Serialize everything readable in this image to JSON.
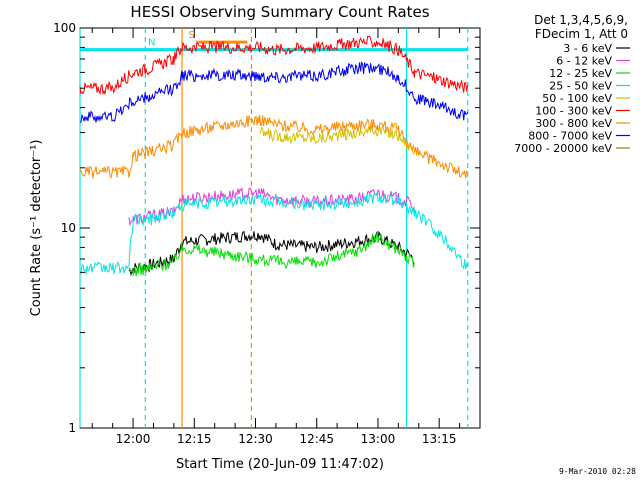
{
  "chart_data": {
    "type": "line",
    "title": "HESSI Observing Summary Count Rates",
    "xlabel": "Start Time (20-Jun-09 11:47:02)",
    "ylabel": "Count Rate (s⁻¹ detector⁻¹)",
    "y_scale": "log",
    "ylim": [
      1,
      100
    ],
    "xlim": [
      "11:47",
      "13:25"
    ],
    "x_tick_labels": [
      "12:00",
      "12:15",
      "12:30",
      "12:45",
      "13:00",
      "13:15"
    ],
    "y_tick_labels": [
      "1",
      "10",
      "100"
    ],
    "grid": false,
    "legend_position": "outside-right",
    "legend_header": [
      "Det 1,3,4,5,6,9,",
      "FDecim 1, Att 0"
    ],
    "footer_date": "9-Mar-2010 02:28",
    "flags": [
      {
        "label": "N",
        "color": "#00e5e5",
        "x_start": "11:47",
        "x_end": "13:22",
        "y": 78
      },
      {
        "label": "S",
        "color": "#ff8c00",
        "x_start": "12:16",
        "x_end": "12:28",
        "y": 85
      }
    ],
    "vertical_markers": [
      {
        "x": "11:47",
        "color": "#00e5e5",
        "style": "solid"
      },
      {
        "x": "12:03",
        "color": "#00e5e5",
        "style": "dashed"
      },
      {
        "x": "12:12",
        "color": "#ff8c00",
        "style": "solid"
      },
      {
        "x": "12:29",
        "color": "#ff8c00",
        "style": "dashed"
      },
      {
        "x": "13:07",
        "color": "#00e5e5",
        "style": "solid"
      },
      {
        "x": "13:22",
        "color": "#00e5e5",
        "style": "dashed"
      }
    ],
    "series": [
      {
        "name": "3 - 6 keV",
        "color": "#000000",
        "x": [
          "11:59",
          "12:00",
          "12:04",
          "12:10",
          "12:12",
          "12:31",
          "12:35",
          "12:45",
          "12:55",
          "13:00",
          "13:05",
          "13:09"
        ],
        "y": [
          6.1,
          6.3,
          6.5,
          7.0,
          8.5,
          9.3,
          8.3,
          8.0,
          8.6,
          9.0,
          8.0,
          7.0
        ]
      },
      {
        "name": "6 - 12 keV",
        "color": "#e040e0",
        "x": [
          "11:59",
          "12:00",
          "12:04",
          "12:10",
          "12:12",
          "12:31",
          "12:35",
          "12:45",
          "12:55",
          "13:00",
          "13:05",
          "13:09"
        ],
        "y": [
          11,
          11,
          11.5,
          12,
          14,
          15,
          14,
          13.5,
          14,
          15,
          14,
          13
        ]
      },
      {
        "name": "12 - 25 keV",
        "color": "#00e000",
        "x": [
          "11:59",
          "12:00",
          "12:04",
          "12:10",
          "12:12",
          "12:31",
          "12:35",
          "12:45",
          "12:55",
          "13:00",
          "13:05",
          "13:09"
        ],
        "y": [
          6.0,
          6.1,
          6.3,
          6.8,
          8.0,
          7.0,
          6.8,
          6.7,
          7.7,
          9.0,
          7.8,
          6.5
        ]
      },
      {
        "name": "25 - 50 keV",
        "color": "#00e5e5",
        "x": [
          "11:47",
          "11:59",
          "12:00",
          "12:04",
          "12:10",
          "12:12",
          "12:31",
          "12:35",
          "12:45",
          "12:55",
          "13:00",
          "13:05",
          "13:09",
          "13:22"
        ],
        "y": [
          6.3,
          6.3,
          11,
          11,
          12,
          13,
          14,
          13.5,
          13,
          13.5,
          14.5,
          13.5,
          12,
          6.3
        ]
      },
      {
        "name": "50 - 100 keV",
        "color": "#d4c000",
        "x": [
          "12:31",
          "12:35",
          "12:45",
          "12:55",
          "13:00",
          "13:05",
          "13:09"
        ],
        "y": [
          30,
          29,
          28,
          30,
          31,
          29,
          24
        ]
      },
      {
        "name": "100 - 300 keV",
        "color": "#ff0000",
        "x": [
          "11:47",
          "11:55",
          "12:00",
          "12:04",
          "12:10",
          "12:12",
          "12:31",
          "12:35",
          "12:45",
          "12:55",
          "13:00",
          "13:05",
          "13:09",
          "13:22"
        ],
        "y": [
          50,
          50,
          60,
          63,
          70,
          80,
          80,
          78,
          80,
          85,
          85,
          78,
          60,
          50
        ]
      },
      {
        "name": "300 - 800 keV",
        "color": "#ff8c00",
        "x": [
          "11:47",
          "11:59",
          "12:00",
          "12:04",
          "12:10",
          "12:12",
          "12:31",
          "12:35",
          "12:45",
          "12:55",
          "13:00",
          "13:05",
          "13:09",
          "13:22"
        ],
        "y": [
          19,
          19,
          23,
          24,
          26,
          30,
          35,
          33,
          31,
          33,
          33,
          31,
          24,
          18
        ]
      },
      {
        "name": "800 - 7000 keV",
        "color": "#0000ee",
        "x": [
          "11:47",
          "11:55",
          "12:00",
          "12:04",
          "12:10",
          "12:12",
          "12:31",
          "12:35",
          "12:45",
          "12:55",
          "13:00",
          "13:05",
          "13:09",
          "13:22"
        ],
        "y": [
          36,
          36,
          43,
          45,
          50,
          58,
          58,
          57,
          58,
          63,
          63,
          57,
          45,
          36
        ]
      },
      {
        "name": "7000 - 20000 keV",
        "color": "#a07800",
        "x": [],
        "y": []
      }
    ]
  }
}
